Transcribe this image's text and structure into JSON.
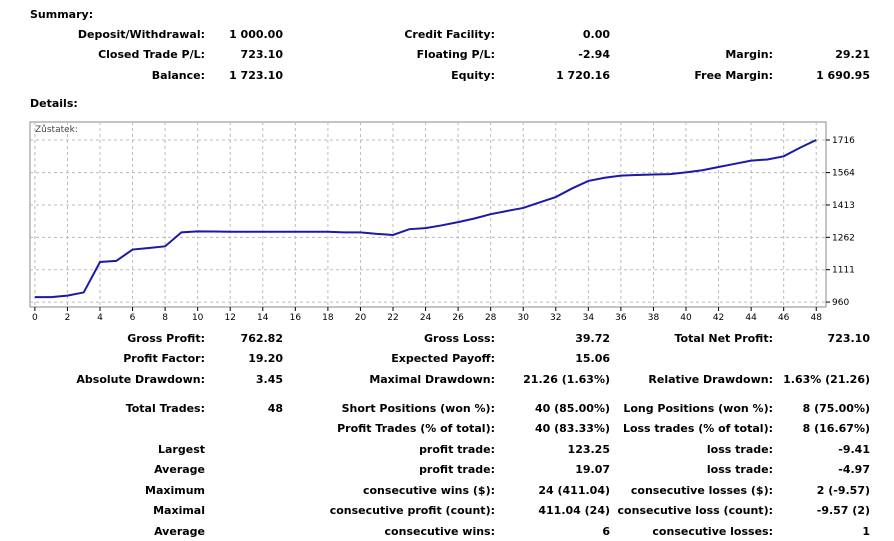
{
  "summary": {
    "title": "Summary:",
    "rows": [
      [
        "Deposit/Withdrawal:",
        "1 000.00",
        "Credit Facility:",
        "0.00",
        null,
        null
      ],
      [
        "Closed Trade P/L:",
        "723.10",
        "Floating P/L:",
        "-2.94",
        "Margin:",
        "29.21"
      ],
      [
        "Balance:",
        "1 723.10",
        "Equity:",
        "1 720.16",
        "Free Margin:",
        "1 690.95"
      ]
    ]
  },
  "details": {
    "title": "Details:",
    "rows": [
      [
        "Gross Profit:",
        "762.82",
        "Gross Loss:",
        "39.72",
        "Total Net Profit:",
        "723.10"
      ],
      [
        "Profit Factor:",
        "19.20",
        "Expected Payoff:",
        "15.06",
        null,
        null
      ],
      [
        "Absolute Drawdown:",
        "3.45",
        "Maximal Drawdown:",
        "21.26 (1.63%)",
        "Relative Drawdown:",
        "1.63% (21.26)"
      ],
      [
        "Total Trades:",
        "48",
        "Short Positions (won %):",
        "40 (85.00%)",
        "Long Positions (won %):",
        "8 (75.00%)"
      ],
      [
        null,
        null,
        "Profit Trades (% of total):",
        "40 (83.33%)",
        "Loss trades (% of total):",
        "8 (16.67%)"
      ],
      [
        "Largest",
        null,
        "profit trade:",
        "123.25",
        "loss trade:",
        "-9.41"
      ],
      [
        "Average",
        null,
        "profit trade:",
        "19.07",
        "loss trade:",
        "-4.97"
      ],
      [
        "Maximum",
        null,
        "consecutive wins ($):",
        "24 (411.04)",
        "consecutive losses ($):",
        "2 (-9.57)"
      ],
      [
        "Maximal",
        null,
        "consecutive profit (count):",
        "411.04 (24)",
        "consecutive loss (count):",
        "-9.57 (2)"
      ],
      [
        "Average",
        null,
        "consecutive wins:",
        "6",
        "consecutive losses:",
        "1"
      ]
    ]
  },
  "chart_data": {
    "type": "line",
    "label": "Zůstatek:",
    "x": [
      0,
      1,
      2,
      3,
      4,
      5,
      6,
      7,
      8,
      9,
      10,
      11,
      12,
      13,
      14,
      15,
      16,
      17,
      18,
      19,
      20,
      21,
      22,
      23,
      24,
      25,
      26,
      27,
      28,
      29,
      30,
      31,
      32,
      33,
      34,
      35,
      36,
      37,
      38,
      39,
      40,
      41,
      42,
      43,
      44,
      45,
      46,
      47,
      48
    ],
    "series": [
      {
        "color": "#1a1aa6",
        "values": [
          983,
          983,
          990,
          1005,
          1147,
          1152,
          1205,
          1212,
          1220,
          1285,
          1290,
          1289,
          1288,
          1288,
          1288,
          1288,
          1288,
          1288,
          1288,
          1285,
          1285,
          1278,
          1273,
          1300,
          1305,
          1318,
          1333,
          1350,
          1370,
          1385,
          1399,
          1425,
          1450,
          1490,
          1525,
          1540,
          1550,
          1553,
          1555,
          1557,
          1565,
          1575,
          1590,
          1605,
          1620,
          1625,
          1640,
          1680,
          1716
        ]
      }
    ],
    "xlim": [
      -0.3,
      48.6
    ],
    "ylim": [
      937,
      1800
    ],
    "xticks": [
      0,
      2,
      4,
      6,
      8,
      10,
      12,
      14,
      16,
      18,
      20,
      22,
      24,
      26,
      28,
      30,
      32,
      34,
      36,
      38,
      40,
      42,
      44,
      46,
      48
    ],
    "yticks": [
      960,
      1111,
      1262,
      1413,
      1564,
      1716
    ],
    "grid": true
  }
}
